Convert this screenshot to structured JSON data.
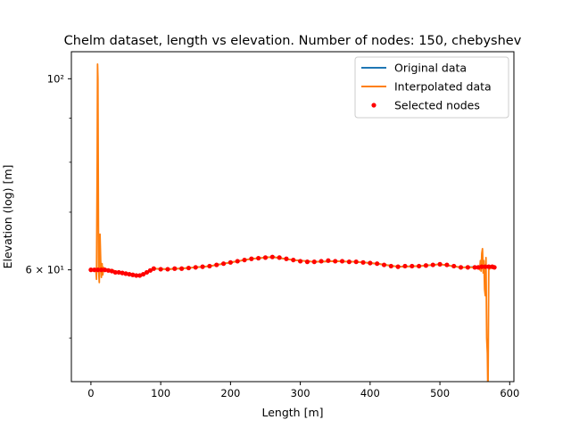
{
  "chart_data": {
    "type": "line",
    "title": "Chelm dataset, length vs elevation. Number of nodes: 150, chebyshev",
    "xlabel": "Length [m]",
    "ylabel": "Elevation (log) [m]",
    "yscale": "log",
    "xlim": [
      -28,
      606
    ],
    "ylim": [
      44.5,
      107.5
    ],
    "xticks": [
      0,
      100,
      200,
      300,
      400,
      500,
      600
    ],
    "xtick_labels": [
      "0",
      "100",
      "200",
      "300",
      "400",
      "500",
      "600"
    ],
    "yticks": [
      60,
      100
    ],
    "ytick_labels": [
      "6 × 10¹",
      "10²"
    ],
    "yticks_minor": [
      50,
      70,
      80,
      90
    ],
    "grid": false,
    "legend_position": "top-right",
    "colors": {
      "original": "#1f77b4",
      "interpolated": "#ff7f0e",
      "nodes": "#ff0000"
    },
    "series": [
      {
        "name": "Original data",
        "kind": "line",
        "x": [
          0,
          20,
          40,
          55,
          70,
          80,
          90,
          110,
          140,
          170,
          200,
          230,
          260,
          290,
          320,
          350,
          380,
          410,
          440,
          470,
          500,
          530,
          560,
          578
        ],
        "y": [
          60.0,
          60.0,
          59.6,
          59.3,
          59.1,
          59.6,
          60.2,
          60.1,
          60.3,
          60.6,
          61.2,
          61.8,
          62.1,
          61.6,
          61.3,
          61.4,
          61.3,
          61.0,
          60.5,
          60.6,
          60.9,
          60.4,
          60.5,
          60.4
        ]
      },
      {
        "name": "Interpolated data",
        "kind": "line",
        "x": [
          0,
          5,
          7,
          8,
          9,
          9.5,
          10,
          11,
          12,
          13,
          14,
          15,
          16,
          17,
          18,
          19,
          20,
          30,
          40,
          55,
          70,
          80,
          90,
          110,
          140,
          170,
          200,
          230,
          260,
          290,
          320,
          350,
          380,
          410,
          440,
          470,
          500,
          530,
          555,
          556,
          557,
          558,
          559,
          560,
          561,
          562,
          563,
          564,
          565,
          566,
          567,
          568,
          568.5,
          569,
          570,
          575,
          578
        ],
        "y": [
          60.0,
          60.0,
          60.2,
          58.5,
          80.0,
          104.0,
          100.0,
          60.0,
          58.0,
          66.0,
          61.5,
          58.8,
          61.0,
          59.2,
          60.4,
          59.8,
          60.1,
          60.0,
          59.6,
          59.3,
          59.1,
          59.6,
          60.2,
          60.1,
          60.3,
          60.6,
          61.2,
          61.8,
          62.1,
          61.6,
          61.3,
          61.4,
          61.3,
          61.0,
          60.5,
          60.6,
          60.9,
          60.4,
          60.4,
          60.6,
          60.0,
          61.5,
          59.8,
          62.7,
          63.5,
          59.5,
          61.5,
          57.0,
          56.0,
          62.0,
          50.0,
          48.0,
          44.5,
          44.5,
          60.0,
          60.6,
          60.4
        ]
      },
      {
        "name": "Selected nodes",
        "kind": "scatter",
        "x": [
          0,
          5,
          10,
          15,
          20,
          25,
          30,
          35,
          40,
          45,
          50,
          55,
          60,
          65,
          70,
          75,
          80,
          85,
          90,
          100,
          110,
          120,
          130,
          140,
          150,
          160,
          170,
          180,
          190,
          200,
          210,
          220,
          230,
          240,
          250,
          260,
          270,
          280,
          290,
          300,
          310,
          320,
          330,
          340,
          350,
          360,
          370,
          380,
          390,
          400,
          410,
          420,
          430,
          440,
          450,
          460,
          470,
          480,
          490,
          500,
          510,
          520,
          530,
          540,
          550,
          555,
          560,
          565,
          570,
          575,
          578
        ],
        "y": [
          60.0,
          60.0,
          60.0,
          60.0,
          60.0,
          59.9,
          59.8,
          59.6,
          59.6,
          59.5,
          59.4,
          59.3,
          59.2,
          59.1,
          59.1,
          59.3,
          59.6,
          59.9,
          60.2,
          60.1,
          60.1,
          60.2,
          60.2,
          60.3,
          60.4,
          60.5,
          60.6,
          60.8,
          61.0,
          61.2,
          61.4,
          61.6,
          61.8,
          61.9,
          62.0,
          62.1,
          62.0,
          61.8,
          61.6,
          61.4,
          61.3,
          61.3,
          61.4,
          61.5,
          61.4,
          61.4,
          61.3,
          61.3,
          61.2,
          61.1,
          61.0,
          60.8,
          60.6,
          60.5,
          60.6,
          60.6,
          60.6,
          60.7,
          60.8,
          60.9,
          60.8,
          60.6,
          60.4,
          60.4,
          60.4,
          60.4,
          60.5,
          60.5,
          60.5,
          60.5,
          60.4
        ]
      }
    ]
  }
}
